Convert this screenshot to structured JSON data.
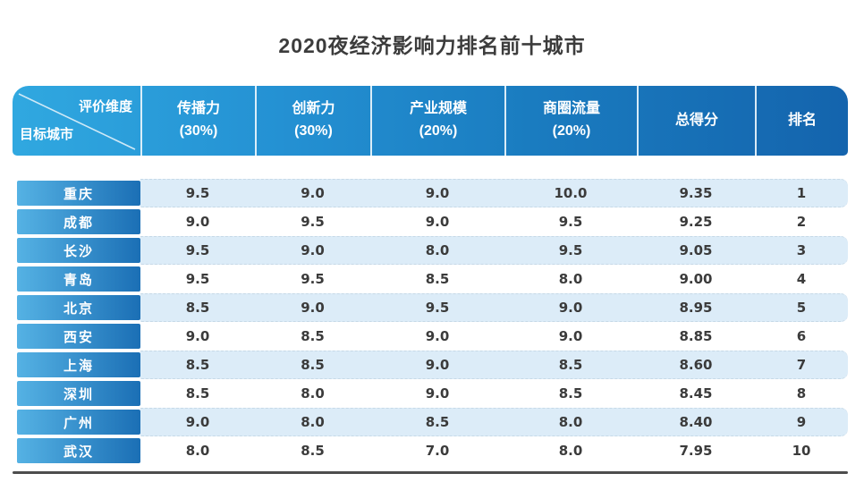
{
  "chart_data": {
    "type": "table",
    "title": "2020夜经济影响力排名前十城市",
    "corner": {
      "top": "评价维度",
      "bottom": "目标城市"
    },
    "columns": [
      {
        "label": "传播力",
        "weight": "(30%)"
      },
      {
        "label": "创新力",
        "weight": "(30%)"
      },
      {
        "label": "产业规模",
        "weight": "(20%)"
      },
      {
        "label": "商圈流量",
        "weight": "(20%)"
      },
      {
        "label": "总得分",
        "weight": ""
      },
      {
        "label": "排名",
        "weight": ""
      }
    ],
    "rows": [
      {
        "city": "重庆",
        "values": [
          "9.5",
          "9.0",
          "9.0",
          "10.0",
          "9.35",
          "1"
        ]
      },
      {
        "city": "成都",
        "values": [
          "9.0",
          "9.5",
          "9.0",
          "9.5",
          "9.25",
          "2"
        ]
      },
      {
        "city": "长沙",
        "values": [
          "9.5",
          "9.0",
          "8.0",
          "9.5",
          "9.05",
          "3"
        ]
      },
      {
        "city": "青岛",
        "values": [
          "9.5",
          "9.5",
          "8.5",
          "8.0",
          "9.00",
          "4"
        ]
      },
      {
        "city": "北京",
        "values": [
          "8.5",
          "9.0",
          "9.5",
          "9.0",
          "8.95",
          "5"
        ]
      },
      {
        "city": "西安",
        "values": [
          "9.0",
          "8.5",
          "9.0",
          "9.0",
          "8.85",
          "6"
        ]
      },
      {
        "city": "上海",
        "values": [
          "8.5",
          "8.5",
          "9.0",
          "8.5",
          "8.60",
          "7"
        ]
      },
      {
        "city": "深圳",
        "values": [
          "8.5",
          "8.0",
          "9.0",
          "8.5",
          "8.45",
          "8"
        ]
      },
      {
        "city": "广州",
        "values": [
          "9.0",
          "8.0",
          "8.5",
          "8.0",
          "8.40",
          "9"
        ]
      },
      {
        "city": "武汉",
        "values": [
          "8.0",
          "8.5",
          "7.0",
          "8.0",
          "7.95",
          "10"
        ]
      }
    ]
  },
  "colors": {
    "header_gradient_start": "#30a8e0",
    "header_gradient_end": "#1464ad",
    "city_gradient_start": "#55b2e4",
    "city_gradient_end": "#1b6fb5",
    "row_stripe": "#dcecf8",
    "header_text": "#ffffff",
    "score_text": "#3b3b3b",
    "bottom_rule": "#4d4d4d"
  }
}
